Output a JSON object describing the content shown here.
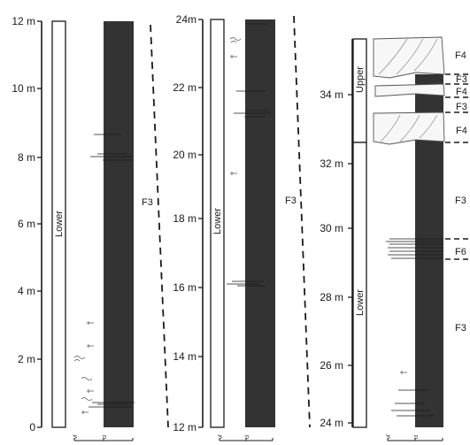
{
  "columns": [
    {
      "id": "col1",
      "ticks": [
        {
          "depth": 12,
          "label": "12 m"
        },
        {
          "depth": 10,
          "label": "10 m"
        },
        {
          "depth": 8,
          "label": "8 m"
        },
        {
          "depth": 6,
          "label": "6 m"
        },
        {
          "depth": 4,
          "label": "4 m"
        },
        {
          "depth": 2,
          "label": "2 m"
        },
        {
          "depth": 0,
          "label": "0"
        }
      ],
      "unit_bars": [
        {
          "label": "Lower",
          "from": 0,
          "to": 12
        }
      ],
      "facies": [
        {
          "label": "F3"
        }
      ],
      "scale_labels": [
        "vf",
        "cl"
      ]
    },
    {
      "id": "col2",
      "ticks": [
        {
          "depth": 24,
          "label": "24m"
        },
        {
          "depth": 22,
          "label": "22 m"
        },
        {
          "depth": 20,
          "label": "20 m"
        },
        {
          "depth": 18,
          "label": "18 m"
        },
        {
          "depth": 16,
          "label": "16 m"
        },
        {
          "depth": 14,
          "label": "14 m"
        },
        {
          "depth": 12,
          "label": "12 m"
        }
      ],
      "unit_bars": [
        {
          "label": "Lower",
          "from": 12,
          "to": 24
        }
      ],
      "facies": [
        {
          "label": "F3"
        }
      ],
      "scale_labels": [
        "vf",
        "cl"
      ]
    },
    {
      "id": "col3",
      "ticks": [
        {
          "depth": 34,
          "label": "34 m"
        },
        {
          "depth": 32,
          "label": "32 m"
        },
        {
          "depth": 30,
          "label": "30 m"
        },
        {
          "depth": 28,
          "label": "28 m"
        },
        {
          "depth": 26,
          "label": "26 m"
        },
        {
          "depth": 24,
          "label": "24 m"
        }
      ],
      "unit_bars": [
        {
          "label": "Upper",
          "from": 32.8,
          "to": 35.9
        },
        {
          "label": "Lower",
          "from": 24,
          "to": 32.8
        }
      ],
      "facies": [
        {
          "label": "F4"
        },
        {
          "label": "F3"
        },
        {
          "label": "F4"
        },
        {
          "label": "F3"
        },
        {
          "label": "F4"
        },
        {
          "label": "F3"
        },
        {
          "label": "F6"
        },
        {
          "label": "F3"
        }
      ],
      "scale_labels": [
        "vf",
        "cl"
      ]
    }
  ],
  "colors": {
    "column_fill": "#333333",
    "line": "#1a1a1a",
    "background": "#ffffff"
  }
}
